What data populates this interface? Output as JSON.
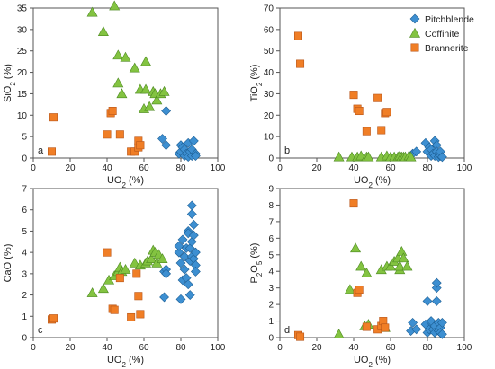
{
  "colors": {
    "pitchblende": "#3d8fd1",
    "coffinite": "#83c341",
    "brannerite": "#f07e26",
    "axis": "#555555"
  },
  "legend": [
    "Pitchblende",
    "Coffinite",
    "Brannerite"
  ],
  "chart_data": [
    {
      "type": "scatter",
      "panel": "a",
      "xlabel": "UO2 (%)",
      "xlabel_main": "UO",
      "xlabel_sub": "2",
      "xlabel_rest": " (%)",
      "ylabel_main": "SiO",
      "ylabel_sub": "2",
      "ylabel_rest": " (%)",
      "xlim": [
        0,
        100
      ],
      "ylim": [
        0,
        35
      ],
      "xticks": [
        0,
        20,
        40,
        60,
        80,
        100
      ],
      "yticks": [
        0,
        5,
        10,
        15,
        20,
        25,
        30,
        35
      ],
      "series": [
        {
          "name": "Pitchblende",
          "points": [
            [
              70,
              4.5
            ],
            [
              72,
              11
            ],
            [
              72,
              3
            ],
            [
              79,
              1
            ],
            [
              80,
              1.5
            ],
            [
              80,
              3
            ],
            [
              81,
              2.5
            ],
            [
              82,
              0.5
            ],
            [
              82,
              2
            ],
            [
              83,
              1
            ],
            [
              84,
              0.3
            ],
            [
              84,
              3.5
            ],
            [
              85,
              1.5
            ],
            [
              86,
              0.5
            ],
            [
              86,
              2
            ],
            [
              87,
              4
            ],
            [
              88,
              1
            ],
            [
              88,
              0.5
            ]
          ]
        },
        {
          "name": "Coffinite",
          "points": [
            [
              32,
              34
            ],
            [
              38,
              29.5
            ],
            [
              44,
              35.5
            ],
            [
              46,
              24
            ],
            [
              46,
              17.5
            ],
            [
              48,
              15
            ],
            [
              50,
              23.5
            ],
            [
              55,
              21
            ],
            [
              58,
              16
            ],
            [
              60,
              11.5
            ],
            [
              61,
              22.5
            ],
            [
              61,
              16
            ],
            [
              63,
              12
            ],
            [
              65,
              15.5
            ],
            [
              66,
              15
            ],
            [
              67,
              13.5
            ],
            [
              69,
              15
            ],
            [
              71,
              15.5
            ]
          ]
        },
        {
          "name": "Brannerite",
          "points": [
            [
              10,
              1.5
            ],
            [
              11,
              9.5
            ],
            [
              40,
              5.5
            ],
            [
              42,
              10.5
            ],
            [
              43,
              11
            ],
            [
              47,
              5.5
            ],
            [
              53,
              1.5
            ],
            [
              55,
              1.5
            ],
            [
              57,
              2.5
            ],
            [
              57,
              4
            ],
            [
              58,
              3
            ]
          ]
        }
      ]
    },
    {
      "type": "scatter",
      "panel": "b",
      "xlabel": "UO2 (%)",
      "xlabel_main": "UO",
      "xlabel_sub": "2",
      "xlabel_rest": " (%)",
      "ylabel_main": "TiO",
      "ylabel_sub": "2",
      "ylabel_rest": " (%)",
      "xlim": [
        0,
        100
      ],
      "ylim": [
        0,
        70
      ],
      "xticks": [
        0,
        20,
        40,
        60,
        80,
        100
      ],
      "yticks": [
        0,
        10,
        20,
        30,
        40,
        50,
        60,
        70
      ],
      "series": [
        {
          "name": "Pitchblende",
          "points": [
            [
              72,
              2
            ],
            [
              74,
              3
            ],
            [
              79,
              7
            ],
            [
              80,
              3
            ],
            [
              81,
              5
            ],
            [
              82,
              1
            ],
            [
              82,
              4
            ],
            [
              83,
              2
            ],
            [
              84,
              8
            ],
            [
              84,
              1
            ],
            [
              85,
              6
            ],
            [
              85,
              3
            ],
            [
              86,
              0.5
            ],
            [
              86,
              2
            ],
            [
              87,
              1
            ],
            [
              87,
              3
            ],
            [
              88,
              0.5
            ]
          ]
        },
        {
          "name": "Coffinite",
          "points": [
            [
              32,
              0.5
            ],
            [
              39,
              0.5
            ],
            [
              42,
              0.5
            ],
            [
              44,
              1
            ],
            [
              47,
              0.5
            ],
            [
              48,
              0.5
            ],
            [
              55,
              0.5
            ],
            [
              58,
              1
            ],
            [
              60,
              0.5
            ],
            [
              62,
              0.5
            ],
            [
              64,
              0.5
            ],
            [
              65,
              1
            ],
            [
              66,
              0.5
            ],
            [
              67,
              0.5
            ],
            [
              68,
              0.5
            ],
            [
              70,
              1
            ],
            [
              71,
              0.5
            ]
          ]
        },
        {
          "name": "Brannerite",
          "points": [
            [
              10,
              57
            ],
            [
              11,
              44
            ],
            [
              40,
              29.5
            ],
            [
              42,
              23
            ],
            [
              43,
              22
            ],
            [
              47,
              12.5
            ],
            [
              53,
              28
            ],
            [
              55,
              13
            ],
            [
              57,
              21
            ],
            [
              58,
              21.5
            ]
          ]
        }
      ]
    },
    {
      "type": "scatter",
      "panel": "c",
      "xlabel": "UO2 (%)",
      "xlabel_main": "UO",
      "xlabel_sub": "2",
      "xlabel_rest": " (%)",
      "ylabel_main": "CaO",
      "ylabel_sub": "",
      "ylabel_rest": " (%)",
      "xlim": [
        0,
        100
      ],
      "ylim": [
        0,
        7
      ],
      "xticks": [
        0,
        20,
        40,
        60,
        80,
        100
      ],
      "yticks": [
        0,
        1,
        2,
        3,
        4,
        5,
        6,
        7
      ],
      "series": [
        {
          "name": "Pitchblende",
          "points": [
            [
              71,
              1.9
            ],
            [
              71,
              3.1
            ],
            [
              72,
              3.2
            ],
            [
              72,
              3.0
            ],
            [
              79,
              4.0
            ],
            [
              79,
              4.3
            ],
            [
              80,
              1.8
            ],
            [
              80,
              3.5
            ],
            [
              81,
              4.6
            ],
            [
              81,
              2.7
            ],
            [
              82,
              3.2
            ],
            [
              82,
              3.8
            ],
            [
              83,
              4.2
            ],
            [
              83,
              2.8
            ],
            [
              84,
              5.0
            ],
            [
              84,
              4.9
            ],
            [
              84,
              2.5
            ],
            [
              85,
              3.6
            ],
            [
              85,
              2.0
            ],
            [
              85,
              4.2
            ],
            [
              86,
              5.8
            ],
            [
              86,
              6.2
            ],
            [
              86,
              4.5
            ],
            [
              86,
              3.8
            ],
            [
              87,
              5.3
            ],
            [
              87,
              3.7
            ],
            [
              88,
              4.0
            ],
            [
              88,
              3.4
            ],
            [
              88,
              3.1
            ],
            [
              87,
              4.8
            ]
          ]
        },
        {
          "name": "Coffinite",
          "points": [
            [
              32,
              2.1
            ],
            [
              38,
              2.3
            ],
            [
              41,
              2.7
            ],
            [
              44,
              2.9
            ],
            [
              46,
              3.1
            ],
            [
              47,
              3.3
            ],
            [
              48,
              3.1
            ],
            [
              50,
              3.2
            ],
            [
              55,
              3.5
            ],
            [
              58,
              3.4
            ],
            [
              61,
              3.5
            ],
            [
              62,
              3.6
            ],
            [
              64,
              3.7
            ],
            [
              65,
              4.1
            ],
            [
              66,
              4.0
            ],
            [
              67,
              3.5
            ],
            [
              68,
              3.9
            ],
            [
              70,
              3.7
            ]
          ]
        },
        {
          "name": "Brannerite",
          "points": [
            [
              10,
              0.85
            ],
            [
              11,
              0.9
            ],
            [
              40,
              4.0
            ],
            [
              43,
              1.35
            ],
            [
              44,
              1.3
            ],
            [
              47,
              2.8
            ],
            [
              53,
              0.95
            ],
            [
              56,
              3.0
            ],
            [
              57,
              1.95
            ],
            [
              58,
              1.1
            ]
          ]
        }
      ]
    },
    {
      "type": "scatter",
      "panel": "d",
      "xlabel": "UO2 (%)",
      "xlabel_main": "UO",
      "xlabel_sub": "2",
      "xlabel_rest": " (%)",
      "ylabel_main": "P",
      "ylabel_sub": "2",
      "ylabel_rest": "O",
      "ylabel_sub2": "5",
      "ylabel_rest2": " (%)",
      "xlim": [
        0,
        100
      ],
      "ylim": [
        0,
        9
      ],
      "xticks": [
        0,
        20,
        40,
        60,
        80,
        100
      ],
      "yticks": [
        0,
        1,
        2,
        3,
        4,
        5,
        6,
        7,
        8,
        9
      ],
      "series": [
        {
          "name": "Pitchblende",
          "points": [
            [
              71,
              0.4
            ],
            [
              72,
              0.9
            ],
            [
              74,
              0.5
            ],
            [
              79,
              0.8
            ],
            [
              80,
              2.2
            ],
            [
              80,
              0.3
            ],
            [
              81,
              0.5
            ],
            [
              82,
              0.9
            ],
            [
              82,
              1.0
            ],
            [
              83,
              0.5
            ],
            [
              84,
              0.7
            ],
            [
              84,
              0.3
            ],
            [
              85,
              2.2
            ],
            [
              85,
              3.0
            ],
            [
              85,
              3.3
            ],
            [
              86,
              0.9
            ],
            [
              86,
              0.4
            ],
            [
              87,
              0.6
            ],
            [
              87,
              0.3
            ],
            [
              88,
              0.2
            ],
            [
              88,
              0.9
            ]
          ]
        },
        {
          "name": "Coffinite",
          "points": [
            [
              32,
              0.2
            ],
            [
              38,
              2.9
            ],
            [
              41,
              5.4
            ],
            [
              44,
              4.3
            ],
            [
              46,
              0.7
            ],
            [
              47,
              3.9
            ],
            [
              48,
              0.8
            ],
            [
              55,
              4.1
            ],
            [
              57,
              0.6
            ],
            [
              58,
              4.3
            ],
            [
              60,
              4.3
            ],
            [
              62,
              4.6
            ],
            [
              64,
              4.8
            ],
            [
              65,
              4.1
            ],
            [
              65,
              4.3
            ],
            [
              66,
              5.2
            ],
            [
              67,
              4.8
            ],
            [
              69,
              4.3
            ]
          ]
        },
        {
          "name": "Brannerite",
          "points": [
            [
              10,
              0.15
            ],
            [
              11,
              0.05
            ],
            [
              40,
              8.1
            ],
            [
              42,
              2.7
            ],
            [
              43,
              2.9
            ],
            [
              47,
              0.65
            ],
            [
              53,
              0.5
            ],
            [
              55,
              0.7
            ],
            [
              56,
              1.0
            ],
            [
              57,
              0.6
            ]
          ]
        }
      ]
    }
  ]
}
